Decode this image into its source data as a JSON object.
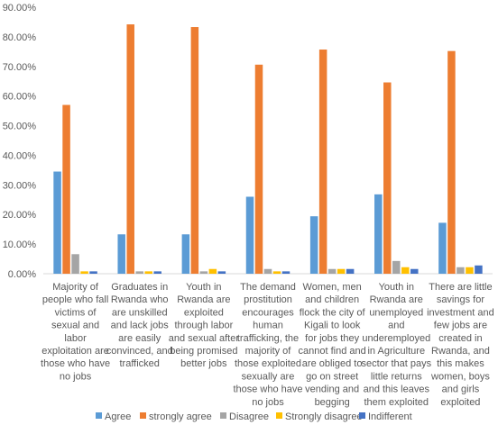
{
  "chart_data": {
    "type": "bar",
    "categories": [
      [
        "Majority of",
        "people who fall",
        "victims of",
        "sexual and",
        "labor",
        "exploitation are",
        "those who have",
        "no jobs"
      ],
      [
        "Graduates in",
        "Rwanda who",
        "are unskilled",
        "and lack jobs",
        "are easily",
        "convinced, and",
        "trafficked"
      ],
      [
        "Youth in",
        "Rwanda are",
        "exploited",
        "through labor",
        "and sexual after",
        "being promised",
        "better jobs"
      ],
      [
        "The demand",
        "prostitution",
        "encourages",
        "human",
        "trafficking, the",
        "majority of",
        "those exploited",
        "sexually are",
        "those who have",
        "no jobs"
      ],
      [
        "Women, men",
        "and children",
        "flock the city of",
        "Kigali to look",
        "for jobs they",
        "cannot find and",
        "are obliged to",
        "go on street",
        "vending and",
        "begging"
      ],
      [
        "Youth in",
        "Rwanda are",
        "unemployed",
        "and",
        "underemployed",
        "in Agriculture",
        "sector that pays",
        "little returns",
        "and this leaves",
        "them exploited"
      ],
      [
        "There are little",
        "savings for",
        "investment and",
        "few jobs are",
        "created in",
        "Rwanda, and",
        "this makes",
        "women, boys",
        "and girls",
        "exploited"
      ]
    ],
    "series": [
      {
        "name": "Agree",
        "color": "#5B9BD5",
        "values": [
          34.5,
          13.3,
          13.3,
          26.0,
          19.4,
          26.8,
          17.2
        ]
      },
      {
        "name": "strongly agree",
        "color": "#ED7D31",
        "values": [
          57.0,
          84.2,
          83.3,
          70.6,
          75.7,
          64.6,
          75.2
        ]
      },
      {
        "name": "Disagree",
        "color": "#A5A5A5",
        "values": [
          6.6,
          0.8,
          0.8,
          1.6,
          1.6,
          4.3,
          2.2
        ]
      },
      {
        "name": "Strongly disagree",
        "color": "#FFC000",
        "values": [
          0.8,
          0.8,
          1.6,
          0.8,
          1.6,
          2.2,
          2.2
        ]
      },
      {
        "name": "Indifferent",
        "color": "#4472C4",
        "values": [
          0.8,
          0.8,
          0.8,
          0.8,
          1.6,
          1.6,
          2.8
        ]
      }
    ],
    "yticks": [
      "0.00%",
      "10.00%",
      "20.00%",
      "30.00%",
      "40.00%",
      "50.00%",
      "60.00%",
      "70.00%",
      "80.00%",
      "90.00%"
    ],
    "ylim": [
      0,
      90
    ],
    "grid": false,
    "legend_position": "bottom"
  }
}
